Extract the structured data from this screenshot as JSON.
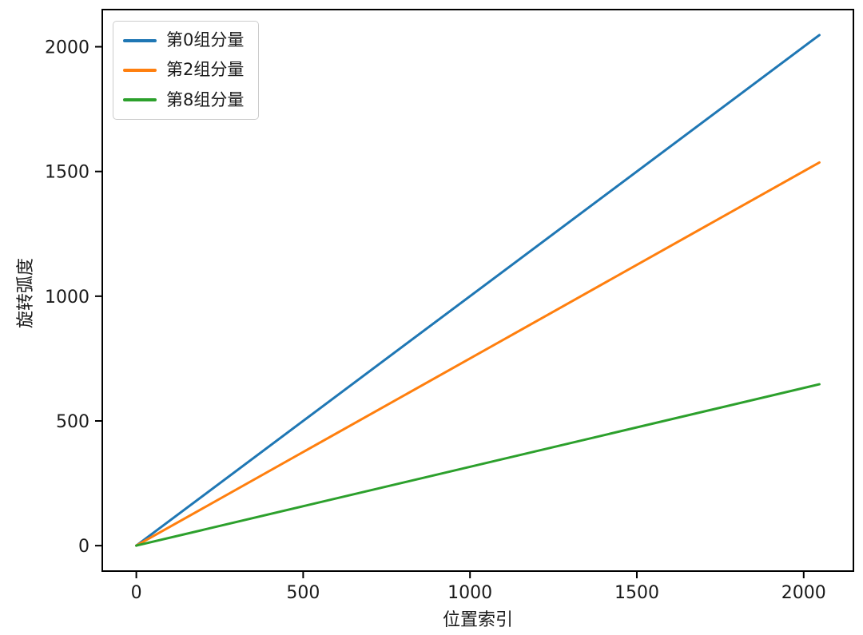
{
  "chart_data": {
    "type": "line",
    "title": "",
    "xlabel": "位置索引",
    "ylabel": "旋转弧度",
    "x_ticks": [
      0,
      500,
      1000,
      1500,
      2000
    ],
    "y_ticks": [
      0,
      500,
      1000,
      1500,
      2000
    ],
    "xlim": [
      -102,
      2149
    ],
    "ylim": [
      -102,
      2149
    ],
    "grid": false,
    "legend_position": "upper left",
    "series": [
      {
        "name": "第0组分量",
        "color": "#1f77b4",
        "x": [
          0,
          2047
        ],
        "y": [
          0,
          2047
        ]
      },
      {
        "name": "第2组分量",
        "color": "#ff7f0e",
        "x": [
          0,
          2047
        ],
        "y": [
          0,
          1536
        ]
      },
      {
        "name": "第8组分量",
        "color": "#2ca02c",
        "x": [
          0,
          2047
        ],
        "y": [
          0,
          647
        ]
      }
    ]
  }
}
